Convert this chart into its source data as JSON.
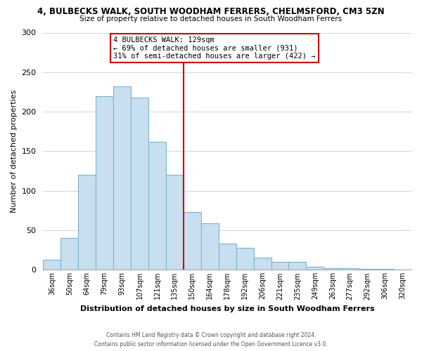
{
  "title1": "4, BULBECKS WALK, SOUTH WOODHAM FERRERS, CHELMSFORD, CM3 5ZN",
  "title2": "Size of property relative to detached houses in South Woodham Ferrers",
  "xlabel": "Distribution of detached houses by size in South Woodham Ferrers",
  "ylabel": "Number of detached properties",
  "footer1": "Contains HM Land Registry data © Crown copyright and database right 2024.",
  "footer2": "Contains public sector information licensed under the Open Government Licence v3.0.",
  "bar_labels": [
    "36sqm",
    "50sqm",
    "64sqm",
    "79sqm",
    "93sqm",
    "107sqm",
    "121sqm",
    "135sqm",
    "150sqm",
    "164sqm",
    "178sqm",
    "192sqm",
    "206sqm",
    "221sqm",
    "235sqm",
    "249sqm",
    "263sqm",
    "277sqm",
    "292sqm",
    "306sqm",
    "320sqm"
  ],
  "bar_values": [
    13,
    40,
    120,
    220,
    232,
    218,
    162,
    120,
    73,
    59,
    33,
    28,
    15,
    10,
    10,
    4,
    2,
    2,
    1,
    1,
    0
  ],
  "bar_color": "#c8dff0",
  "bar_edge_color": "#7ab4d4",
  "vline_x": 7.5,
  "vline_color": "#cc0000",
  "annotation_title": "4 BULBECKS WALK: 129sqm",
  "annotation_line1": "← 69% of detached houses are smaller (931)",
  "annotation_line2": "31% of semi-detached houses are larger (422) →",
  "annotation_box_color": "white",
  "annotation_box_edge": "#cc0000",
  "ylim": [
    0,
    300
  ],
  "yticks": [
    0,
    50,
    100,
    150,
    200,
    250,
    300
  ],
  "background_color": "white",
  "grid_color": "#c8dce8"
}
